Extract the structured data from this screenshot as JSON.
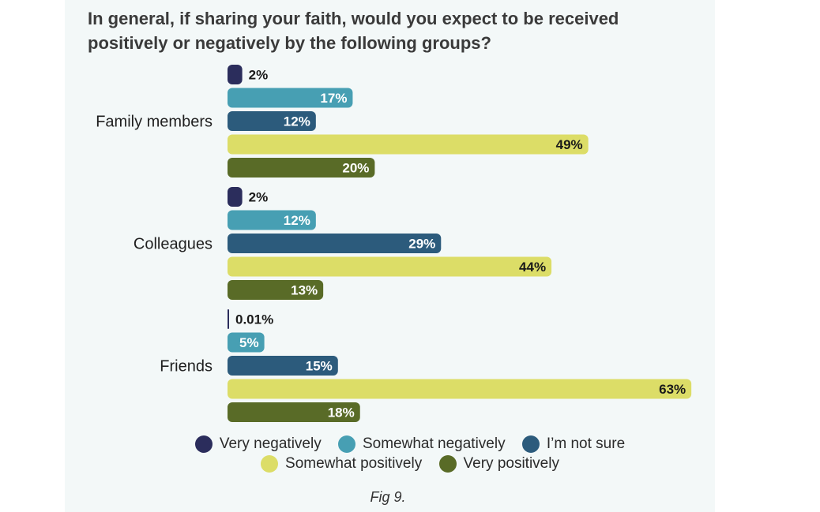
{
  "title": "In general, if sharing your faith, would you expect to be received positively or negatively by the following groups?",
  "caption": "Fig 9.",
  "chart_data": {
    "type": "bar",
    "orientation": "horizontal",
    "title": "In general, if sharing your faith, would you expect to be received positively or negatively by the following groups?",
    "categories": [
      "Family members",
      "Colleagues",
      "Friends"
    ],
    "series": [
      {
        "name": "Very negatively",
        "color": "#2b2d5c",
        "values": [
          2,
          2,
          0.01
        ],
        "labels": [
          "2%",
          "2%",
          "0.01%"
        ]
      },
      {
        "name": "Somewhat negatively",
        "color": "#479fb3",
        "values": [
          17,
          12,
          5
        ],
        "labels": [
          "17%",
          "12%",
          "5%"
        ]
      },
      {
        "name": "I’m not sure",
        "color": "#2c5b7c",
        "values": [
          12,
          29,
          15
        ],
        "labels": [
          "12%",
          "29%",
          "15%"
        ]
      },
      {
        "name": "Somewhat positively",
        "color": "#dcdd67",
        "values": [
          49,
          44,
          63
        ],
        "labels": [
          "49%",
          "44%",
          "63%"
        ]
      },
      {
        "name": "Very positively",
        "color": "#596b27",
        "values": [
          20,
          13,
          18
        ],
        "labels": [
          "20%",
          "13%",
          "18%"
        ]
      }
    ],
    "xlim": [
      0,
      63
    ],
    "grid": false,
    "legend_position": "bottom"
  }
}
